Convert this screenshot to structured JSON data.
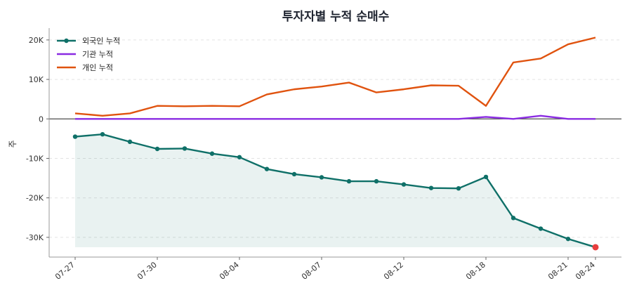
{
  "chart_data": {
    "type": "line",
    "title": "투자자별 누적 순매수",
    "xlabel": "",
    "ylabel": "주",
    "x": [
      "07-27",
      "07-28",
      "07-29",
      "07-30",
      "07-31",
      "08-01",
      "08-04",
      "08-05",
      "08-06",
      "08-07",
      "08-08",
      "08-11",
      "08-12",
      "08-13",
      "08-14",
      "08-18",
      "08-19",
      "08-20",
      "08-21",
      "08-24"
    ],
    "x_tick_labels": [
      "07-27",
      "07-30",
      "08-04",
      "08-07",
      "08-12",
      "08-18",
      "08-21",
      "08-24"
    ],
    "ylim": [
      -35000,
      23000
    ],
    "y_ticks": [
      -30000,
      -20000,
      -10000,
      0,
      10000,
      20000
    ],
    "y_tick_labels": [
      "-30K",
      "-20K",
      "-10K",
      "0",
      "10K",
      "20K"
    ],
    "grid": true,
    "legend_position": "top-left",
    "series": [
      {
        "name": "외국인 누적",
        "color": "#0f7068",
        "markers": true,
        "fill": true,
        "values": [
          -4500,
          -3900,
          -5800,
          -7600,
          -7500,
          -8800,
          -9700,
          -12700,
          -14000,
          -14800,
          -15800,
          -15800,
          -16600,
          -17500,
          -17600,
          -14700,
          -25100,
          -27800,
          -30400,
          -32500
        ]
      },
      {
        "name": "기관 누적",
        "color": "#8a2be2",
        "markers": false,
        "fill": false,
        "values": [
          0,
          0,
          0,
          0,
          0,
          0,
          0,
          0,
          0,
          0,
          0,
          0,
          0,
          0,
          0,
          500,
          0,
          800,
          0,
          0
        ]
      },
      {
        "name": "개인 누적",
        "color": "#e0530f",
        "markers": false,
        "fill": false,
        "values": [
          1400,
          800,
          1400,
          3300,
          3200,
          3300,
          3200,
          6200,
          7500,
          8200,
          9200,
          6700,
          7500,
          8500,
          8400,
          3300,
          14300,
          15300,
          18900,
          20600
        ]
      }
    ],
    "highlight_last_point_color": "#e83e3e"
  }
}
